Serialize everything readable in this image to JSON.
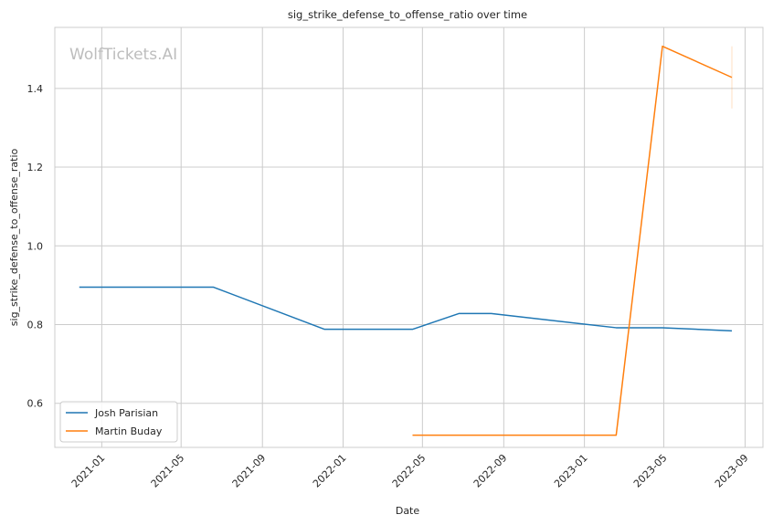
{
  "watermark": "WolfTickets.AI",
  "chart_data": {
    "type": "line",
    "title": "sig_strike_defense_to_offense_ratio over time",
    "xlabel": "Date",
    "ylabel": "sig_strike_defense_to_offense_ratio",
    "x_ticks": [
      "2021-01",
      "2021-05",
      "2021-09",
      "2022-01",
      "2022-05",
      "2022-09",
      "2023-01",
      "2023-05",
      "2023-09"
    ],
    "y_ticks": [
      0.6,
      0.8,
      1.0,
      1.2,
      1.4
    ],
    "xlim": [
      "2020-10-22",
      "2023-09-28"
    ],
    "ylim": [
      0.488,
      1.555
    ],
    "grid": true,
    "legend_position": "lower-left",
    "series": [
      {
        "name": "Josh Parisian",
        "color": "#1f77b4",
        "points": [
          {
            "x": "2020-11-28",
            "y": 0.895
          },
          {
            "x": "2021-06-19",
            "y": 0.895
          },
          {
            "x": "2021-12-04",
            "y": 0.788
          },
          {
            "x": "2022-04-16",
            "y": 0.788
          },
          {
            "x": "2022-06-25",
            "y": 0.828
          },
          {
            "x": "2022-08-13",
            "y": 0.828
          },
          {
            "x": "2023-02-18",
            "y": 0.792
          },
          {
            "x": "2023-04-29",
            "y": 0.792
          },
          {
            "x": "2023-08-12",
            "y": 0.784
          }
        ]
      },
      {
        "name": "Martin Buday",
        "color": "#ff7f0e",
        "points": [
          {
            "x": "2022-04-16",
            "y": 0.519
          },
          {
            "x": "2023-02-18",
            "y": 0.519
          },
          {
            "x": "2023-04-29",
            "y": 1.507
          },
          {
            "x": "2023-08-12",
            "y": 1.428
          }
        ]
      }
    ]
  }
}
